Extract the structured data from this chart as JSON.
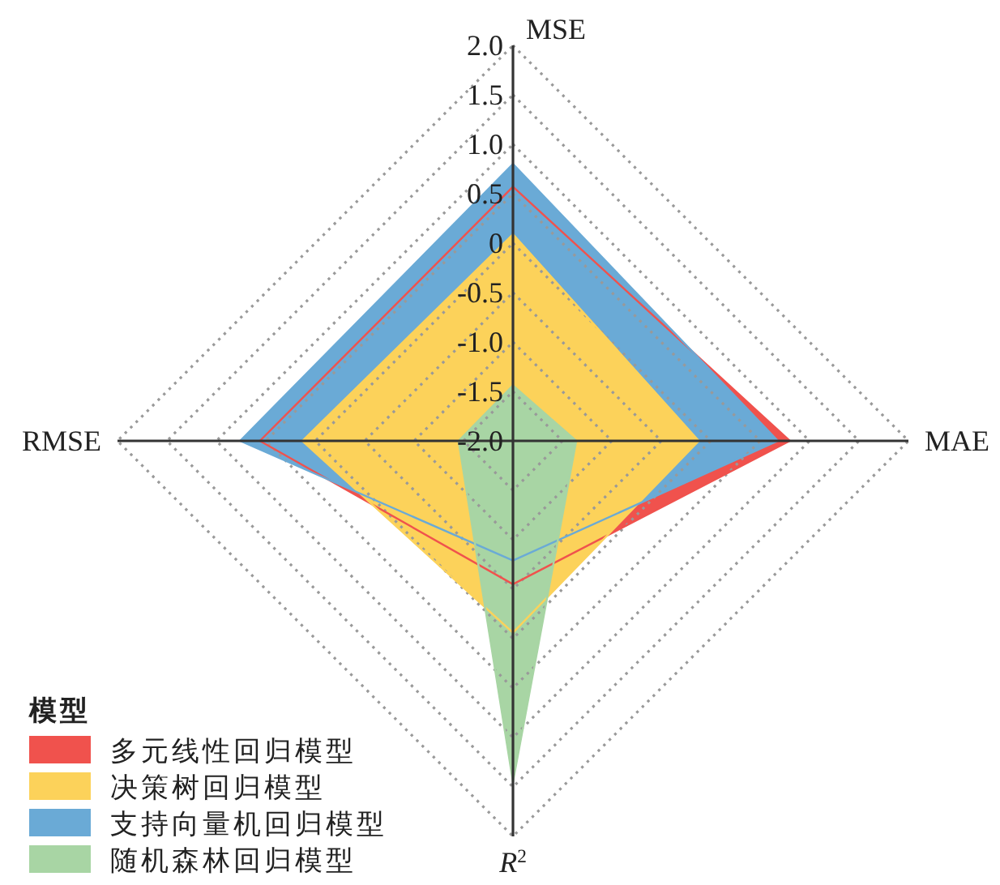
{
  "chart_data": {
    "type": "radar",
    "categories": [
      "MSE",
      "MAE",
      "R$^{2}$",
      "RMSE"
    ],
    "ylim": [
      -2,
      2
    ],
    "yticks": [
      {
        "value": -2,
        "label": "-2.0"
      },
      -1.5,
      {
        "value": -1,
        "label": "-1.0"
      },
      -0.5,
      0,
      0.5,
      {
        "value": 1,
        "label": "1.0"
      },
      1.5,
      {
        "value": 2,
        "label": "2.0"
      }
    ],
    "grid": true,
    "legend": "bottom left",
    "legend_title": "模型",
    "series": [
      {
        "name": "多元线性回归模型",
        "color": "#f0524d",
        "values": [
          0.57,
          0.8,
          -0.55,
          0.56
        ]
      },
      {
        "name": "决策树回归模型",
        "color": "#fcd25a",
        "values": [
          0.09,
          -0.12,
          -0.06,
          0.13
        ]
      },
      {
        "name": "支持向量机回归模型",
        "color": "#6aaad6",
        "values": [
          0.8,
          0.68,
          -0.79,
          0.76
        ]
      },
      {
        "name": "随机森林回归模型",
        "color": "#a8d5a4",
        "values": [
          -1.44,
          -1.36,
          1.45,
          -1.45
        ]
      }
    ]
  }
}
